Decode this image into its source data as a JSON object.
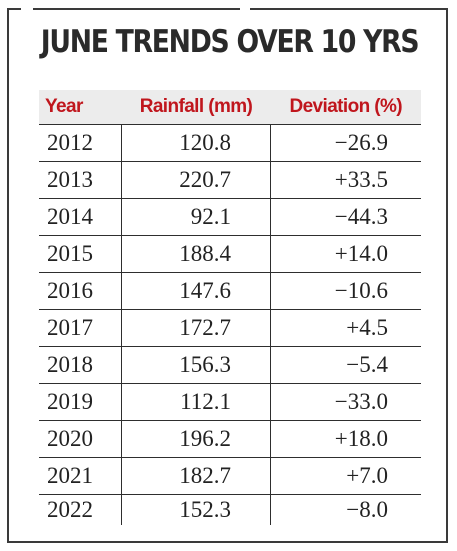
{
  "chart_data": {
    "type": "table",
    "title": "JUNE TRENDS OVER 10 YRS",
    "columns": [
      "Year",
      "Rainfall (mm)",
      "Deviation (%)"
    ],
    "rows": [
      {
        "year": "2012",
        "rainfall": "120.8",
        "deviation": "−26.9"
      },
      {
        "year": "2013",
        "rainfall": "220.7",
        "deviation": "+33.5"
      },
      {
        "year": "2014",
        "rainfall": "92.1",
        "deviation": "−44.3"
      },
      {
        "year": "2015",
        "rainfall": "188.4",
        "deviation": "+14.0"
      },
      {
        "year": "2016",
        "rainfall": "147.6",
        "deviation": "−10.6"
      },
      {
        "year": "2017",
        "rainfall": "172.7",
        "deviation": "+4.5"
      },
      {
        "year": "2018",
        "rainfall": "156.3",
        "deviation": "−5.4"
      },
      {
        "year": "2019",
        "rainfall": "112.1",
        "deviation": "−33.0"
      },
      {
        "year": "2020",
        "rainfall": "196.2",
        "deviation": "+18.0"
      },
      {
        "year": "2021",
        "rainfall": "182.7",
        "deviation": "+7.0"
      },
      {
        "year": "2022",
        "rainfall": "152.3",
        "deviation": "−8.0"
      }
    ]
  },
  "colors": {
    "header_text": "#c0161d",
    "header_bg": "#ececec",
    "rule": "#2e2e2e"
  }
}
